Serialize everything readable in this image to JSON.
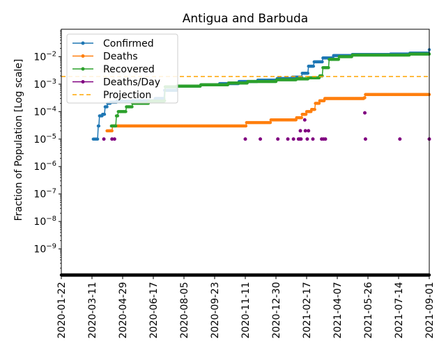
{
  "chart_data": {
    "type": "line",
    "title": "Antigua and Barbuda",
    "xlabel": "",
    "ylabel": "Fraction of Population [Log scale]",
    "y_scale": "log",
    "ylim": [
      1e-10,
      0.1
    ],
    "xlim": [
      "2020-01-22",
      "2021-09-01"
    ],
    "grid": false,
    "legend_position": "top-left",
    "x_ticks": [
      "2020-01-22",
      "2020-03-11",
      "2020-04-29",
      "2020-06-17",
      "2020-08-05",
      "2020-09-23",
      "2020-11-11",
      "2020-12-30",
      "2021-02-17",
      "2021-04-07",
      "2021-05-26",
      "2021-07-14",
      "2021-09-01"
    ],
    "y_ticks": [
      {
        "value": 1e-09,
        "base": "10",
        "exp": "−9"
      },
      {
        "value": 1e-08,
        "base": "10",
        "exp": "−8"
      },
      {
        "value": 1e-07,
        "base": "10",
        "exp": "−7"
      },
      {
        "value": 1e-06,
        "base": "10",
        "exp": "−6"
      },
      {
        "value": 1e-05,
        "base": "10",
        "exp": "−5"
      },
      {
        "value": 0.0001,
        "base": "10",
        "exp": "−4"
      },
      {
        "value": 0.001,
        "base": "10",
        "exp": "−3"
      },
      {
        "value": 0.01,
        "base": "10",
        "exp": "−2"
      }
    ],
    "series": [
      {
        "name": "Confirmed",
        "color": "#1f77b4",
        "style": "line-marker",
        "points": [
          [
            "2020-03-13",
            1e-05
          ],
          [
            "2020-03-19",
            1e-05
          ],
          [
            "2020-03-21",
            3e-05
          ],
          [
            "2020-03-23",
            7e-05
          ],
          [
            "2020-03-28",
            8e-05
          ],
          [
            "2020-04-01",
            0.00015
          ],
          [
            "2020-04-05",
            0.0002
          ],
          [
            "2020-04-10",
            0.00022
          ],
          [
            "2020-04-20",
            0.00024
          ],
          [
            "2020-05-15",
            0.00025
          ],
          [
            "2020-06-20",
            0.0003
          ],
          [
            "2020-07-05",
            0.0006
          ],
          [
            "2020-07-25",
            0.00085
          ],
          [
            "2020-09-01",
            0.00095
          ],
          [
            "2020-10-01",
            0.00105
          ],
          [
            "2020-11-01",
            0.00125
          ],
          [
            "2020-12-01",
            0.0014
          ],
          [
            "2021-01-01",
            0.0016
          ],
          [
            "2021-01-25",
            0.0018
          ],
          [
            "2021-02-10",
            0.0025
          ],
          [
            "2021-02-20",
            0.0045
          ],
          [
            "2021-03-01",
            0.0065
          ],
          [
            "2021-03-15",
            0.009
          ],
          [
            "2021-04-01",
            0.011
          ],
          [
            "2021-05-01",
            0.012
          ],
          [
            "2021-07-01",
            0.0125
          ],
          [
            "2021-08-01",
            0.0135
          ],
          [
            "2021-09-01",
            0.018
          ]
        ]
      },
      {
        "name": "Deaths",
        "color": "#ff7f0e",
        "style": "line-marker",
        "points": [
          [
            "2020-04-04",
            2e-05
          ],
          [
            "2020-04-10",
            2e-05
          ],
          [
            "2020-04-13",
            3e-05
          ],
          [
            "2020-11-11",
            3e-05
          ],
          [
            "2020-11-13",
            4e-05
          ],
          [
            "2020-12-20",
            4e-05
          ],
          [
            "2020-12-22",
            5e-05
          ],
          [
            "2021-01-30",
            5e-05
          ],
          [
            "2021-02-01",
            6e-05
          ],
          [
            "2021-02-10",
            8e-05
          ],
          [
            "2021-02-17",
            0.0001
          ],
          [
            "2021-02-25",
            0.00012
          ],
          [
            "2021-03-03",
            0.0002
          ],
          [
            "2021-03-10",
            0.00025
          ],
          [
            "2021-03-18",
            0.0003
          ],
          [
            "2021-05-20",
            0.00032
          ],
          [
            "2021-05-22",
            0.00042
          ],
          [
            "2021-09-01",
            0.00042
          ]
        ]
      },
      {
        "name": "Recovered",
        "color": "#2ca02c",
        "style": "line-marker",
        "points": [
          [
            "2020-04-11",
            3e-05
          ],
          [
            "2020-04-17",
            3e-05
          ],
          [
            "2020-04-19",
            7e-05
          ],
          [
            "2020-04-22",
            0.0001
          ],
          [
            "2020-05-05",
            0.00015
          ],
          [
            "2020-05-15",
            0.0002
          ],
          [
            "2020-06-10",
            0.00024
          ],
          [
            "2020-07-05",
            0.00025
          ],
          [
            "2020-07-06",
            0.0008
          ],
          [
            "2020-07-25",
            0.00085
          ],
          [
            "2020-09-01",
            0.00095
          ],
          [
            "2020-10-15",
            0.0011
          ],
          [
            "2020-11-15",
            0.00125
          ],
          [
            "2020-12-31",
            0.00145
          ],
          [
            "2021-02-01",
            0.00155
          ],
          [
            "2021-02-20",
            0.0017
          ],
          [
            "2021-03-10",
            0.002
          ],
          [
            "2021-03-15",
            0.004
          ],
          [
            "2021-03-25",
            0.008
          ],
          [
            "2021-04-10",
            0.01
          ],
          [
            "2021-05-01",
            0.0115
          ],
          [
            "2021-08-01",
            0.0125
          ],
          [
            "2021-09-01",
            0.0125
          ]
        ]
      },
      {
        "name": "Deaths/Day",
        "color": "#800080",
        "style": "marker",
        "points": [
          [
            "2020-03-30",
            1e-05
          ],
          [
            "2020-04-12",
            1e-05
          ],
          [
            "2020-04-16",
            1e-05
          ],
          [
            "2020-11-11",
            1e-05
          ],
          [
            "2020-12-05",
            1e-05
          ],
          [
            "2021-01-02",
            1e-05
          ],
          [
            "2021-01-18",
            1e-05
          ],
          [
            "2021-01-27",
            1e-05
          ],
          [
            "2021-02-04",
            1e-05
          ],
          [
            "2021-02-06",
            1e-05
          ],
          [
            "2021-02-07",
            2e-05
          ],
          [
            "2021-02-08",
            1e-05
          ],
          [
            "2021-02-14",
            5e-05
          ],
          [
            "2021-02-15",
            2e-05
          ],
          [
            "2021-02-18",
            1e-05
          ],
          [
            "2021-02-20",
            2e-05
          ],
          [
            "2021-02-27",
            1e-05
          ],
          [
            "2021-03-13",
            1e-05
          ],
          [
            "2021-03-16",
            1e-05
          ],
          [
            "2021-03-19",
            1e-05
          ],
          [
            "2021-05-21",
            9e-05
          ],
          [
            "2021-05-22",
            1e-05
          ],
          [
            "2021-07-16",
            1e-05
          ],
          [
            "2021-09-01",
            1e-05
          ]
        ]
      },
      {
        "name": "Projection",
        "color": "#ffa500",
        "style": "dashed",
        "points": [
          [
            "2020-01-22",
            0.0019
          ],
          [
            "2021-09-01",
            0.0019
          ]
        ]
      }
    ]
  }
}
